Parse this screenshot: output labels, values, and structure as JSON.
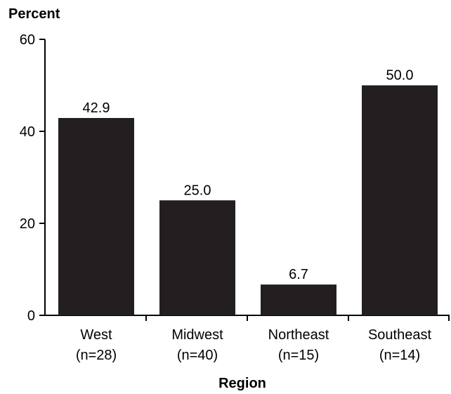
{
  "chart_data": {
    "type": "bar",
    "ylabel": "Percent",
    "xlabel": "Region",
    "ylim": [
      0,
      60
    ],
    "yticks": [
      0,
      20,
      40,
      60
    ],
    "categories": [
      {
        "name": "West",
        "n": "(n=28)"
      },
      {
        "name": "Midwest",
        "n": "(n=40)"
      },
      {
        "name": "Northeast",
        "n": "(n=15)"
      },
      {
        "name": "Southeast",
        "n": "(n=14)"
      }
    ],
    "values": [
      42.9,
      25.0,
      6.7,
      50.0
    ],
    "value_labels": [
      "42.9",
      "25.0",
      "6.7",
      "50.0"
    ],
    "bar_color": "#231f20",
    "grid": false
  }
}
